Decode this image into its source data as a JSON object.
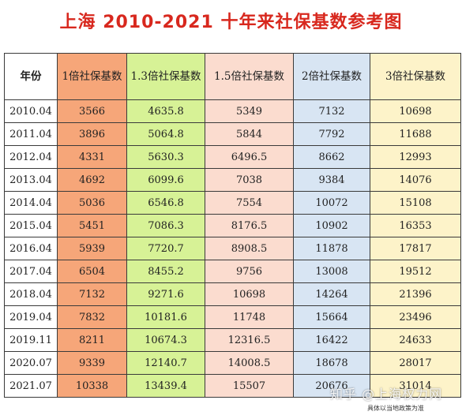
{
  "title": "上海 2010-2021 十年来社保基数参考图",
  "headers": [
    "年份",
    "1倍社保基数",
    "1.3倍社保基数",
    "1.5倍社保基数",
    "2倍社保基数",
    "3倍社保基数"
  ],
  "rows": [
    [
      "2010.04",
      "3566",
      "4635.8",
      "5349",
      "7132",
      "10698"
    ],
    [
      "2011.04",
      "3896",
      "5064.8",
      "5844",
      "7792",
      "11688"
    ],
    [
      "2012.04",
      "4331",
      "5630.3",
      "6496.5",
      "8662",
      "12993"
    ],
    [
      "2013.04",
      "4692",
      "6099.6",
      "7038",
      "9384",
      "14076"
    ],
    [
      "2014.04",
      "5036",
      "6546.8",
      "7554",
      "10072",
      "15108"
    ],
    [
      "2015.04",
      "5451",
      "7086.3",
      "8176.5",
      "10902",
      "16353"
    ],
    [
      "2016.04",
      "5939",
      "7720.7",
      "8908.5",
      "11878",
      "17817"
    ],
    [
      "2017.04",
      "6504",
      "8455.2",
      "9756",
      "13008",
      "19512"
    ],
    [
      "2018.04",
      "7132",
      "9271.6",
      "10698",
      "14264",
      "21396"
    ],
    [
      "2019.04",
      "7832",
      "10181.6",
      "11748",
      "15664",
      "23496"
    ],
    [
      "2019.11",
      "8211",
      "10674.3",
      "12316.5",
      "16422",
      "24633"
    ],
    [
      "2020.07",
      "9339",
      "12140.7",
      "14008.5",
      "18678",
      "28017"
    ],
    [
      "2021.07",
      "10338",
      "13439.4",
      "15507",
      "20676",
      "31014"
    ]
  ],
  "watermark": "知乎 @上海权力网",
  "note": "具体以当地政策为准",
  "colors": {
    "title": "#d8281e",
    "col_1x": "#f6a679",
    "col_1_3x": "#d7f296",
    "col_1_5x": "#fbdccf",
    "col_2x": "#d8e5f3",
    "col_3x": "#fdf3c9"
  }
}
